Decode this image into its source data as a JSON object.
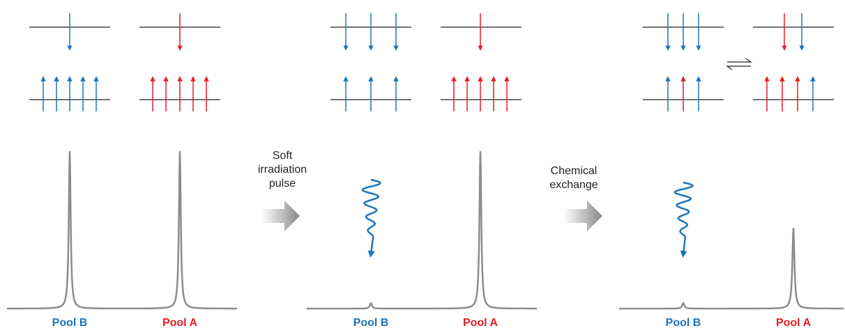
{
  "steps": [
    {
      "label_lines": [
        "Soft",
        "irradiation",
        "pulse"
      ]
    },
    {
      "label_lines": [
        "Chemical",
        "exchange"
      ]
    }
  ],
  "panels": [
    {
      "pool_b": "Pool B",
      "pool_a": "Pool A"
    },
    {
      "pool_b": "Pool B",
      "pool_a": "Pool A"
    },
    {
      "pool_b": "Pool B",
      "pool_a": "Pool A"
    }
  ]
}
